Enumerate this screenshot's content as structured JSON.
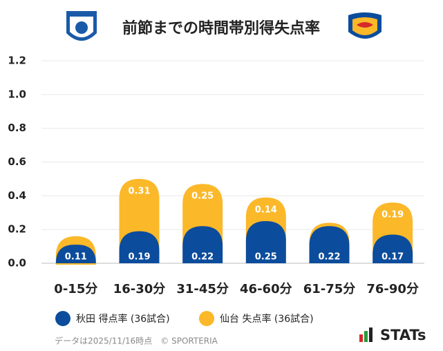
{
  "chart_data": {
    "type": "stacked-bar",
    "title": "前節までの時間帯別得失点率",
    "categories": [
      "0-15分",
      "16-30分",
      "31-45分",
      "46-60分",
      "61-75分",
      "76-90分"
    ],
    "series": [
      {
        "name": "秋田 得点率 (36試合)",
        "color": "#0b4c9c",
        "values": [
          0.11,
          0.19,
          0.22,
          0.25,
          0.22,
          0.17
        ]
      },
      {
        "name": "仙台 失点率 (36試合)",
        "color": "#fbb829",
        "values": [
          0.05,
          0.31,
          0.25,
          0.14,
          0.02,
          0.19
        ],
        "value_labels": [
          null,
          "0.31",
          "0.25",
          "0.14",
          null,
          "0.19"
        ]
      }
    ],
    "ylim": [
      0,
      1.2
    ],
    "yticks": [
      {
        "value": 0,
        "label": "0.0"
      },
      0.2,
      0.4,
      0.6,
      0.8,
      {
        "value": 1,
        "label": "1.0"
      },
      1.2
    ],
    "grid": true,
    "legend": "bottom"
  },
  "footer": {
    "note": "データは2025/11/16時点　© SPORTERIA",
    "brand": "STATs"
  }
}
